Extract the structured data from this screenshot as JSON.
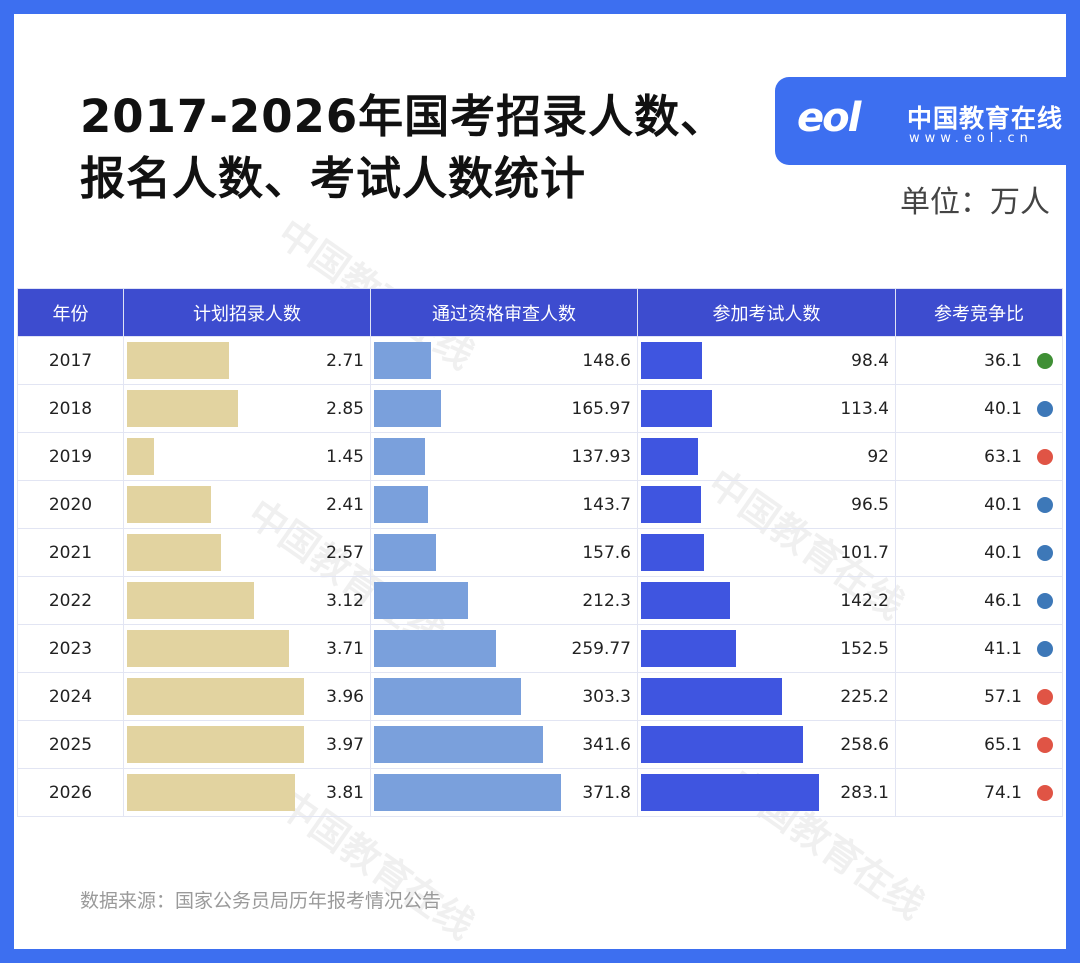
{
  "title_line1": "2017-2026年国考招录人数、",
  "title_line2": "报名人数、考试人数统计",
  "logo": {
    "mark": "eol",
    "name": "中国教育在线",
    "url": "www.eol.cn"
  },
  "unit": "单位：万人",
  "footer": "数据来源：国家公务员局历年报考情况公告",
  "watermark": "中国教育在线",
  "colors": {
    "frame": "#3d6ff0",
    "header": "#3d4ccf",
    "bar_plan": "#e2d3a0",
    "bar_review": "#7aa0dc",
    "bar_exam": "#3f55e0",
    "green": "#3f8f35",
    "blue": "#3d78b8",
    "red": "#e05445"
  },
  "chart_data": {
    "type": "table",
    "columns": [
      "年份",
      "计划招录人数",
      "通过资格审查人数",
      "参加考试人数",
      "参考竞争比"
    ],
    "rows": [
      {
        "year": "2017",
        "plan": "2.71",
        "review": "148.6",
        "exam": "98.4",
        "ratio": "36.1",
        "dot": "green"
      },
      {
        "year": "2018",
        "plan": "2.85",
        "review": "165.97",
        "exam": "113.4",
        "ratio": "40.1",
        "dot": "blue"
      },
      {
        "year": "2019",
        "plan": "1.45",
        "review": "137.93",
        "exam": "92",
        "ratio": "63.1",
        "dot": "red"
      },
      {
        "year": "2020",
        "plan": "2.41",
        "review": "143.7",
        "exam": "96.5",
        "ratio": "40.1",
        "dot": "blue"
      },
      {
        "year": "2021",
        "plan": "2.57",
        "review": "157.6",
        "exam": "101.7",
        "ratio": "40.1",
        "dot": "blue"
      },
      {
        "year": "2022",
        "plan": "3.12",
        "review": "212.3",
        "exam": "142.2",
        "ratio": "46.1",
        "dot": "blue"
      },
      {
        "year": "2023",
        "plan": "3.71",
        "review": "259.77",
        "exam": "152.5",
        "ratio": "41.1",
        "dot": "blue"
      },
      {
        "year": "2024",
        "plan": "3.96",
        "review": "303.3",
        "exam": "225.2",
        "ratio": "57.1",
        "dot": "red"
      },
      {
        "year": "2025",
        "plan": "3.97",
        "review": "341.6",
        "exam": "258.6",
        "ratio": "65.1",
        "dot": "red"
      },
      {
        "year": "2026",
        "plan": "3.81",
        "review": "371.8",
        "exam": "283.1",
        "ratio": "74.1",
        "dot": "red"
      }
    ]
  }
}
